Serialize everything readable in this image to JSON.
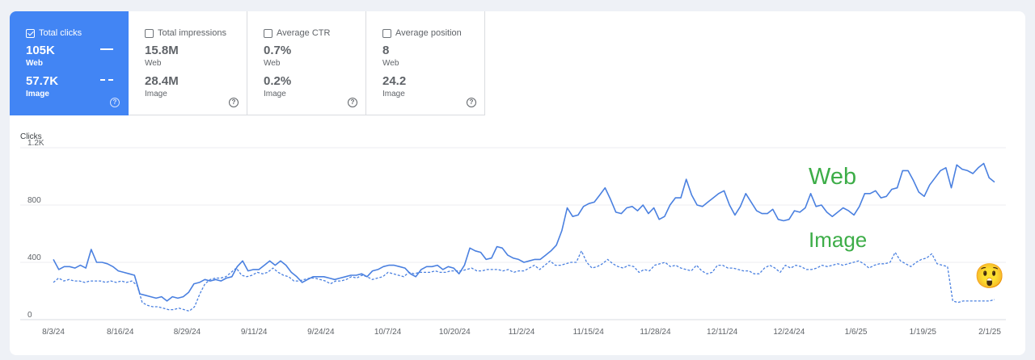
{
  "metrics": [
    {
      "label": "Total clicks",
      "checked": true,
      "web_value": "105K",
      "web_label": "Web",
      "image_value": "57.7K",
      "image_label": "Image"
    },
    {
      "label": "Total impressions",
      "checked": false,
      "web_value": "15.8M",
      "web_label": "Web",
      "image_value": "28.4M",
      "image_label": "Image"
    },
    {
      "label": "Average CTR",
      "checked": false,
      "web_value": "0.7%",
      "web_label": "Web",
      "image_value": "0.2%",
      "image_label": "Image"
    },
    {
      "label": "Average position",
      "checked": false,
      "web_value": "8",
      "web_label": "Web",
      "image_value": "24.2",
      "image_label": "Image"
    }
  ],
  "help_glyph": "?",
  "annotations": {
    "web": "Web",
    "image": "Image",
    "color": "#3dad48",
    "emoji": "😲"
  },
  "colors": {
    "accent": "#4285f4",
    "line": "#4a80e0"
  },
  "chart_data": {
    "type": "line",
    "ylabel": "Clicks",
    "y_ticks": [
      "0",
      "400",
      "800",
      "1.2K"
    ],
    "ylim": [
      0,
      1200
    ],
    "x_ticks": [
      "8/3/24",
      "8/16/24",
      "8/29/24",
      "9/11/24",
      "9/24/24",
      "10/7/24",
      "10/20/24",
      "11/2/24",
      "11/15/24",
      "11/28/24",
      "12/11/24",
      "12/24/24",
      "1/6/25",
      "1/19/25",
      "2/1/25"
    ],
    "grid": true,
    "series": [
      {
        "name": "Web",
        "style": "solid",
        "values": [
          420,
          350,
          370,
          370,
          360,
          380,
          360,
          490,
          400,
          400,
          390,
          370,
          340,
          330,
          320,
          310,
          180,
          170,
          160,
          150,
          160,
          130,
          160,
          150,
          160,
          190,
          250,
          260,
          280,
          270,
          280,
          270,
          290,
          300,
          370,
          410,
          340,
          350,
          350,
          380,
          410,
          380,
          410,
          380,
          330,
          300,
          260,
          280,
          300,
          300,
          300,
          290,
          280,
          290,
          300,
          310,
          310,
          320,
          300,
          340,
          350,
          370,
          380,
          380,
          370,
          360,
          320,
          300,
          350,
          370,
          370,
          380,
          350,
          370,
          360,
          320,
          380,
          500,
          480,
          470,
          420,
          430,
          510,
          500,
          450,
          430,
          420,
          400,
          410,
          420,
          420,
          450,
          480,
          520,
          620,
          780,
          720,
          730,
          790,
          810,
          820,
          870,
          920,
          840,
          750,
          740,
          780,
          790,
          760,
          800,
          740,
          780,
          700,
          720,
          800,
          850,
          850,
          980,
          870,
          800,
          790,
          820,
          850,
          880,
          900,
          800,
          730,
          790,
          880,
          820,
          760,
          740,
          740,
          770,
          700,
          690,
          700,
          760,
          750,
          780,
          880,
          790,
          800,
          750,
          720,
          750,
          780,
          760,
          730,
          790,
          880,
          880,
          900,
          850,
          860,
          910,
          920,
          1040,
          1040,
          970,
          890,
          860,
          940,
          990,
          1040,
          1060,
          920,
          1080,
          1050,
          1040,
          1020,
          1060,
          1090,
          990,
          960
        ]
      },
      {
        "name": "Image",
        "style": "dashed",
        "values": [
          260,
          290,
          270,
          280,
          270,
          270,
          260,
          270,
          270,
          270,
          260,
          270,
          260,
          270,
          260,
          270,
          240,
          120,
          100,
          90,
          90,
          80,
          70,
          70,
          80,
          70,
          60,
          90,
          180,
          250,
          280,
          290,
          290,
          300,
          330,
          360,
          310,
          300,
          310,
          330,
          320,
          330,
          360,
          330,
          310,
          300,
          270,
          270,
          280,
          290,
          290,
          280,
          270,
          250,
          270,
          270,
          280,
          300,
          290,
          310,
          300,
          280,
          290,
          300,
          330,
          320,
          310,
          300,
          330,
          320,
          330,
          330,
          330,
          340,
          330,
          330,
          340,
          340,
          340,
          350,
          360,
          340,
          340,
          350,
          350,
          350,
          340,
          350,
          330,
          340,
          340,
          360,
          380,
          350,
          380,
          410,
          380,
          380,
          390,
          400,
          400,
          480,
          400,
          360,
          370,
          390,
          420,
          390,
          370,
          360,
          380,
          370,
          330,
          350,
          340,
          380,
          390,
          400,
          370,
          380,
          360,
          350,
          340,
          380,
          340,
          320,
          330,
          380,
          380,
          360,
          360,
          350,
          340,
          340,
          320,
          320,
          360,
          380,
          360,
          330,
          380,
          360,
          380,
          370,
          350,
          350,
          360,
          380,
          370,
          380,
          390,
          380,
          390,
          400,
          410,
          390,
          360,
          380,
          390,
          390,
          400,
          470,
          410,
          390,
          370,
          400,
          420,
          430,
          460,
          390,
          380,
          370,
          130,
          120,
          130,
          130,
          130,
          130,
          130,
          130,
          140
        ]
      }
    ]
  }
}
